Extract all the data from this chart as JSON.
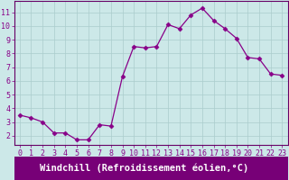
{
  "x": [
    0,
    1,
    2,
    3,
    4,
    5,
    6,
    7,
    8,
    9,
    10,
    11,
    12,
    13,
    14,
    15,
    16,
    17,
    18,
    19,
    20,
    21,
    22,
    23
  ],
  "y": [
    3.5,
    3.3,
    3.0,
    2.2,
    2.2,
    1.7,
    1.7,
    2.8,
    2.7,
    6.3,
    8.5,
    8.4,
    8.5,
    10.1,
    9.8,
    10.8,
    11.3,
    10.4,
    9.8,
    9.1,
    7.7,
    7.6,
    6.5,
    6.4
  ],
  "line_color": "#880088",
  "marker": "D",
  "marker_size": 2.5,
  "bg_color": "#cce8e8",
  "grid_color": "#aacccc",
  "xlabel": "Windchill (Refroidissement éolien,°C)",
  "xlabel_bg": "#770077",
  "xlabel_fg": "#ffffff",
  "ylim": [
    1.3,
    11.8
  ],
  "yticks": [
    2,
    3,
    4,
    5,
    6,
    7,
    8,
    9,
    10,
    11
  ],
  "xlim": [
    -0.5,
    23.5
  ],
  "xticks": [
    0,
    1,
    2,
    3,
    4,
    5,
    6,
    7,
    8,
    9,
    10,
    11,
    12,
    13,
    14,
    15,
    16,
    17,
    18,
    19,
    20,
    21,
    22,
    23
  ],
  "tick_fontsize": 6,
  "xlabel_fontsize": 7.5,
  "spine_color": "#888888",
  "axis_line_color": "#660066"
}
